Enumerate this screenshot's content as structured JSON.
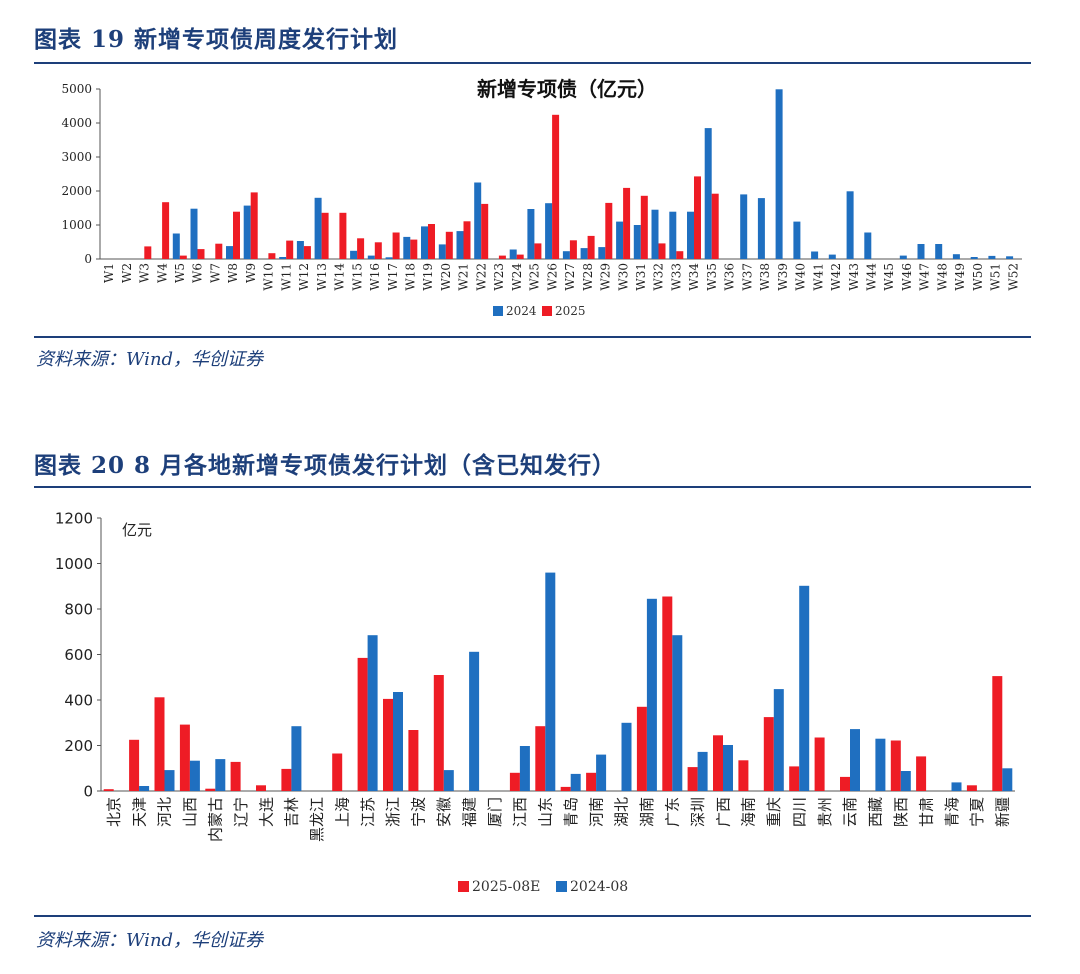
{
  "figure1": {
    "label": "图表 19   新增专项债周度发行计划",
    "source": "资料来源：Wind，华创证券"
  },
  "figure2": {
    "label": "图表 20   8 月各地新增专项债发行计划（含已知发行）",
    "source": "资料来源：Wind，华创证券"
  },
  "colors": {
    "blue": "#1f6fc0",
    "red": "#ee1c25",
    "navy": "#1d3f7a"
  },
  "chart_data": [
    {
      "type": "bar",
      "title": "新增专项债（亿元）",
      "categories": [
        "W1",
        "W2",
        "W3",
        "W4",
        "W5",
        "W6",
        "W7",
        "W8",
        "W9",
        "W10",
        "W11",
        "W12",
        "W13",
        "W14",
        "W15",
        "W16",
        "W17",
        "W18",
        "W19",
        "W20",
        "W21",
        "W22",
        "W23",
        "W24",
        "W25",
        "W26",
        "W27",
        "W28",
        "W29",
        "W30",
        "W31",
        "W32",
        "W33",
        "W34",
        "W35",
        "W36",
        "W37",
        "W38",
        "W39",
        "W40",
        "W41",
        "W42",
        "W43",
        "W44",
        "W45",
        "W46",
        "W47",
        "W48",
        "W49",
        "W50",
        "W51",
        "W52"
      ],
      "yticks": [
        "0",
        "1000",
        "2000",
        "3000",
        "4000",
        "5000"
      ],
      "ylim": [
        0,
        5000
      ],
      "legend_position": "bottom",
      "series": [
        {
          "name": "2024",
          "color": "#1f6fc0",
          "values": [
            0,
            0,
            0,
            0,
            750,
            1480,
            0,
            380,
            1570,
            0,
            60,
            530,
            1800,
            0,
            240,
            100,
            50,
            650,
            960,
            430,
            820,
            2250,
            0,
            280,
            1470,
            1640,
            230,
            320,
            350,
            1100,
            1000,
            1450,
            1390,
            1390,
            3850,
            0,
            1900,
            1790,
            4990,
            1100,
            220,
            130,
            1990,
            780,
            0,
            100,
            440,
            440,
            140,
            60,
            90,
            80
          ]
        },
        {
          "name": "2025",
          "color": "#ee1c25",
          "values": [
            0,
            0,
            370,
            1670,
            100,
            290,
            450,
            1390,
            1960,
            170,
            540,
            380,
            1360,
            1360,
            610,
            490,
            780,
            570,
            1030,
            800,
            1110,
            1620,
            100,
            130,
            460,
            4240,
            550,
            680,
            1650,
            2090,
            1860,
            460,
            230,
            2430,
            1920,
            0,
            0,
            0,
            0,
            0,
            0,
            0,
            0,
            0,
            0,
            0,
            0,
            0,
            0,
            0,
            0,
            0
          ]
        }
      ]
    },
    {
      "type": "bar",
      "ylabel": "亿元",
      "categories": [
        "北京",
        "天津",
        "河北",
        "山西",
        "内蒙古",
        "辽宁",
        "大连",
        "吉林",
        "黑龙江",
        "上海",
        "江苏",
        "浙江",
        "宁波",
        "安徽",
        "福建",
        "厦门",
        "江西",
        "山东",
        "青岛",
        "河南",
        "湖北",
        "湖南",
        "广东",
        "深圳",
        "广西",
        "海南",
        "重庆",
        "四川",
        "贵州",
        "云南",
        "西藏",
        "陕西",
        "甘肃",
        "青海",
        "宁夏",
        "新疆"
      ],
      "yticks": [
        "0",
        "200",
        "400",
        "600",
        "800",
        "1000",
        "1200"
      ],
      "ylim": [
        0,
        1200
      ],
      "legend_position": "bottom",
      "series": [
        {
          "name": "2025-08E",
          "color": "#ee1c25",
          "values": [
            8,
            225,
            412,
            292,
            10,
            128,
            25,
            97,
            0,
            165,
            585,
            405,
            268,
            510,
            0,
            0,
            80,
            285,
            18,
            80,
            0,
            370,
            855,
            105,
            245,
            135,
            325,
            108,
            235,
            62,
            0,
            222,
            152,
            0,
            25,
            505
          ]
        },
        {
          "name": "2024-08",
          "color": "#1f6fc0",
          "values": [
            0,
            22,
            92,
            133,
            140,
            0,
            0,
            285,
            0,
            0,
            685,
            435,
            0,
            92,
            612,
            0,
            198,
            960,
            75,
            160,
            300,
            845,
            685,
            172,
            202,
            0,
            448,
            902,
            0,
            272,
            230,
            88,
            0,
            38,
            0,
            100
          ]
        }
      ]
    }
  ]
}
